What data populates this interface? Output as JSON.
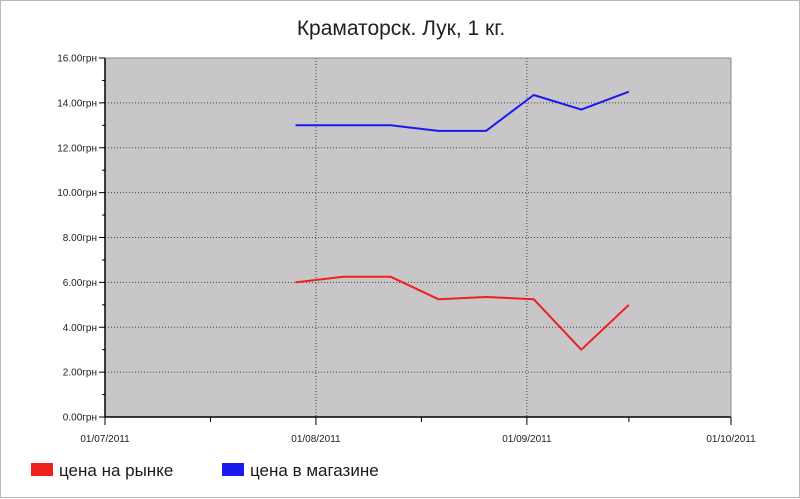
{
  "chart_data": {
    "type": "line",
    "title": "Краматорск. Лук, 1 кг.",
    "xlabel": "",
    "ylabel": "",
    "ylim": [
      0,
      16
    ],
    "yticks": [
      {
        "value": 0,
        "label": "0.00грн"
      },
      {
        "value": 2,
        "label": "2.00грн"
      },
      {
        "value": 4,
        "label": "4.00грн"
      },
      {
        "value": 6,
        "label": "6.00грн"
      },
      {
        "value": 8,
        "label": "8.00грн"
      },
      {
        "value": 10,
        "label": "10.00грн"
      },
      {
        "value": 12,
        "label": "12.00грн"
      },
      {
        "value": 14,
        "label": "14.00грн"
      },
      {
        "value": 16,
        "label": "16.00грн"
      }
    ],
    "xlim": [
      "2011-07-01",
      "2011-10-01"
    ],
    "xticks": [
      {
        "date": "2011-07-01",
        "label": "01/07/2011"
      },
      {
        "date": "2011-08-01",
        "label": "01/08/2011"
      },
      {
        "date": "2011-09-01",
        "label": "01/09/2011"
      },
      {
        "date": "2011-10-01",
        "label": "01/10/2011"
      }
    ],
    "grid": true,
    "legend_position": "bottom-left",
    "series": [
      {
        "name": "цена на рынке",
        "color": "#ee2020",
        "points": [
          {
            "x": "2011-07-29",
            "y": 6.0
          },
          {
            "x": "2011-08-05",
            "y": 6.25
          },
          {
            "x": "2011-08-12",
            "y": 6.25
          },
          {
            "x": "2011-08-19",
            "y": 5.25
          },
          {
            "x": "2011-08-26",
            "y": 5.35
          },
          {
            "x": "2011-09-02",
            "y": 5.25
          },
          {
            "x": "2011-09-09",
            "y": 3.0
          },
          {
            "x": "2011-09-16",
            "y": 5.0
          }
        ]
      },
      {
        "name": "цена в магазине",
        "color": "#1a1aee",
        "points": [
          {
            "x": "2011-07-29",
            "y": 13.0
          },
          {
            "x": "2011-08-05",
            "y": 13.0
          },
          {
            "x": "2011-08-12",
            "y": 13.0
          },
          {
            "x": "2011-08-19",
            "y": 12.75
          },
          {
            "x": "2011-08-26",
            "y": 12.75
          },
          {
            "x": "2011-09-02",
            "y": 14.35
          },
          {
            "x": "2011-09-09",
            "y": 13.7
          },
          {
            "x": "2011-09-16",
            "y": 14.5
          }
        ]
      }
    ]
  }
}
